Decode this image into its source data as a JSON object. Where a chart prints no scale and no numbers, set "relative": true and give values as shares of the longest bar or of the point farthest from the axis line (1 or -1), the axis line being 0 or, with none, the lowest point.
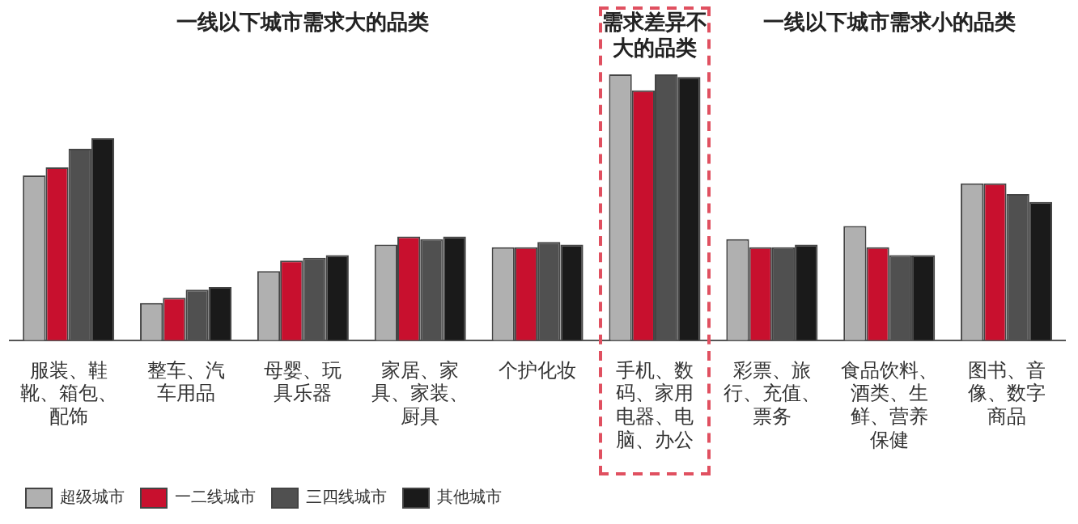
{
  "chart_data": {
    "type": "bar",
    "relative": true,
    "legend": "bottom left",
    "grid": false,
    "annotations": [
      "一线以下城市需求大的品类",
      "需求差异不大的品类",
      "一线以下城市需求小的品类"
    ],
    "categories": [
      "服装、鞋靴、箱包、配饰",
      "整车、汽车用品",
      "母婴、玩具乐器",
      "家居、家具、家装、厨具",
      "个护化妆",
      "手机、数码、家用电器、电脑、办公",
      "彩票、旅行、充值、票务",
      "食品饮料、酒类、生鲜、营养保健",
      "图书、音像、数字商品"
    ],
    "series": [
      {
        "name": "超级城市",
        "color": "#b0b0b0",
        "values": [
          0.62,
          0.14,
          0.26,
          0.36,
          0.35,
          1,
          0.38,
          0.43,
          0.59
        ]
      },
      {
        "name": "一二线城市",
        "color": "#c8102e",
        "values": [
          0.65,
          0.16,
          0.3,
          0.39,
          0.35,
          0.94,
          0.35,
          0.35,
          0.59
        ]
      },
      {
        "name": "三四线城市",
        "color": "#505050",
        "values": [
          0.72,
          0.19,
          0.31,
          0.38,
          0.37,
          1,
          0.35,
          0.32,
          0.55
        ]
      },
      {
        "name": "其他城市",
        "color": "#1a1a1a",
        "values": [
          0.76,
          0.2,
          0.32,
          0.39,
          0.36,
          0.99,
          0.36,
          0.32,
          0.52
        ]
      }
    ]
  }
}
